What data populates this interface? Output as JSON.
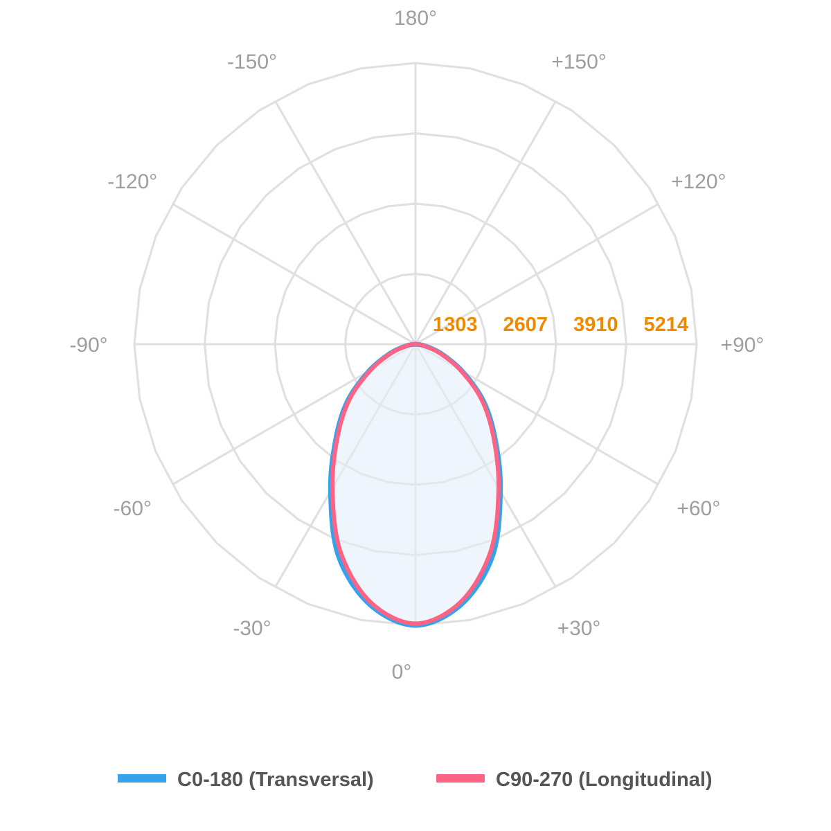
{
  "chart_data": {
    "type": "polar-line",
    "title": "",
    "angle_labels": [
      "180°",
      "+150°",
      "+120°",
      "+90°",
      "+60°",
      "+30°",
      "0°",
      "-30°",
      "-60°",
      "-90°",
      "-120°",
      "-150°"
    ],
    "angle_values": [
      180,
      150,
      120,
      90,
      60,
      30,
      0,
      -30,
      -60,
      -90,
      -120,
      -150
    ],
    "ring_labels": [
      "1303",
      "2607",
      "3910",
      "5214"
    ],
    "ring_values": [
      1303,
      2607,
      3910,
      5214
    ],
    "rmax": 5214,
    "grid": true,
    "legend_placement": "bottom",
    "angles": [
      -90,
      -80,
      -70,
      -60,
      -50,
      -40,
      -30,
      -20,
      -10,
      0,
      10,
      20,
      30,
      40,
      50,
      60,
      70,
      80,
      90
    ],
    "series": [
      {
        "name": "C0-180 (Transversal)",
        "color": "#36a2eb",
        "fill": "#eef5fc",
        "values": [
          0,
          170,
          500,
          1000,
          1650,
          2300,
          3150,
          4180,
          4900,
          5214,
          4900,
          4180,
          3150,
          2300,
          1650,
          1000,
          500,
          170,
          0
        ]
      },
      {
        "name": "C90-270 (Longitudinal)",
        "color": "#ff6384",
        "values": [
          0,
          150,
          470,
          960,
          1600,
          2250,
          3080,
          4080,
          4850,
          5180,
          4850,
          4080,
          3080,
          2250,
          1600,
          960,
          470,
          150,
          0
        ]
      }
    ]
  }
}
